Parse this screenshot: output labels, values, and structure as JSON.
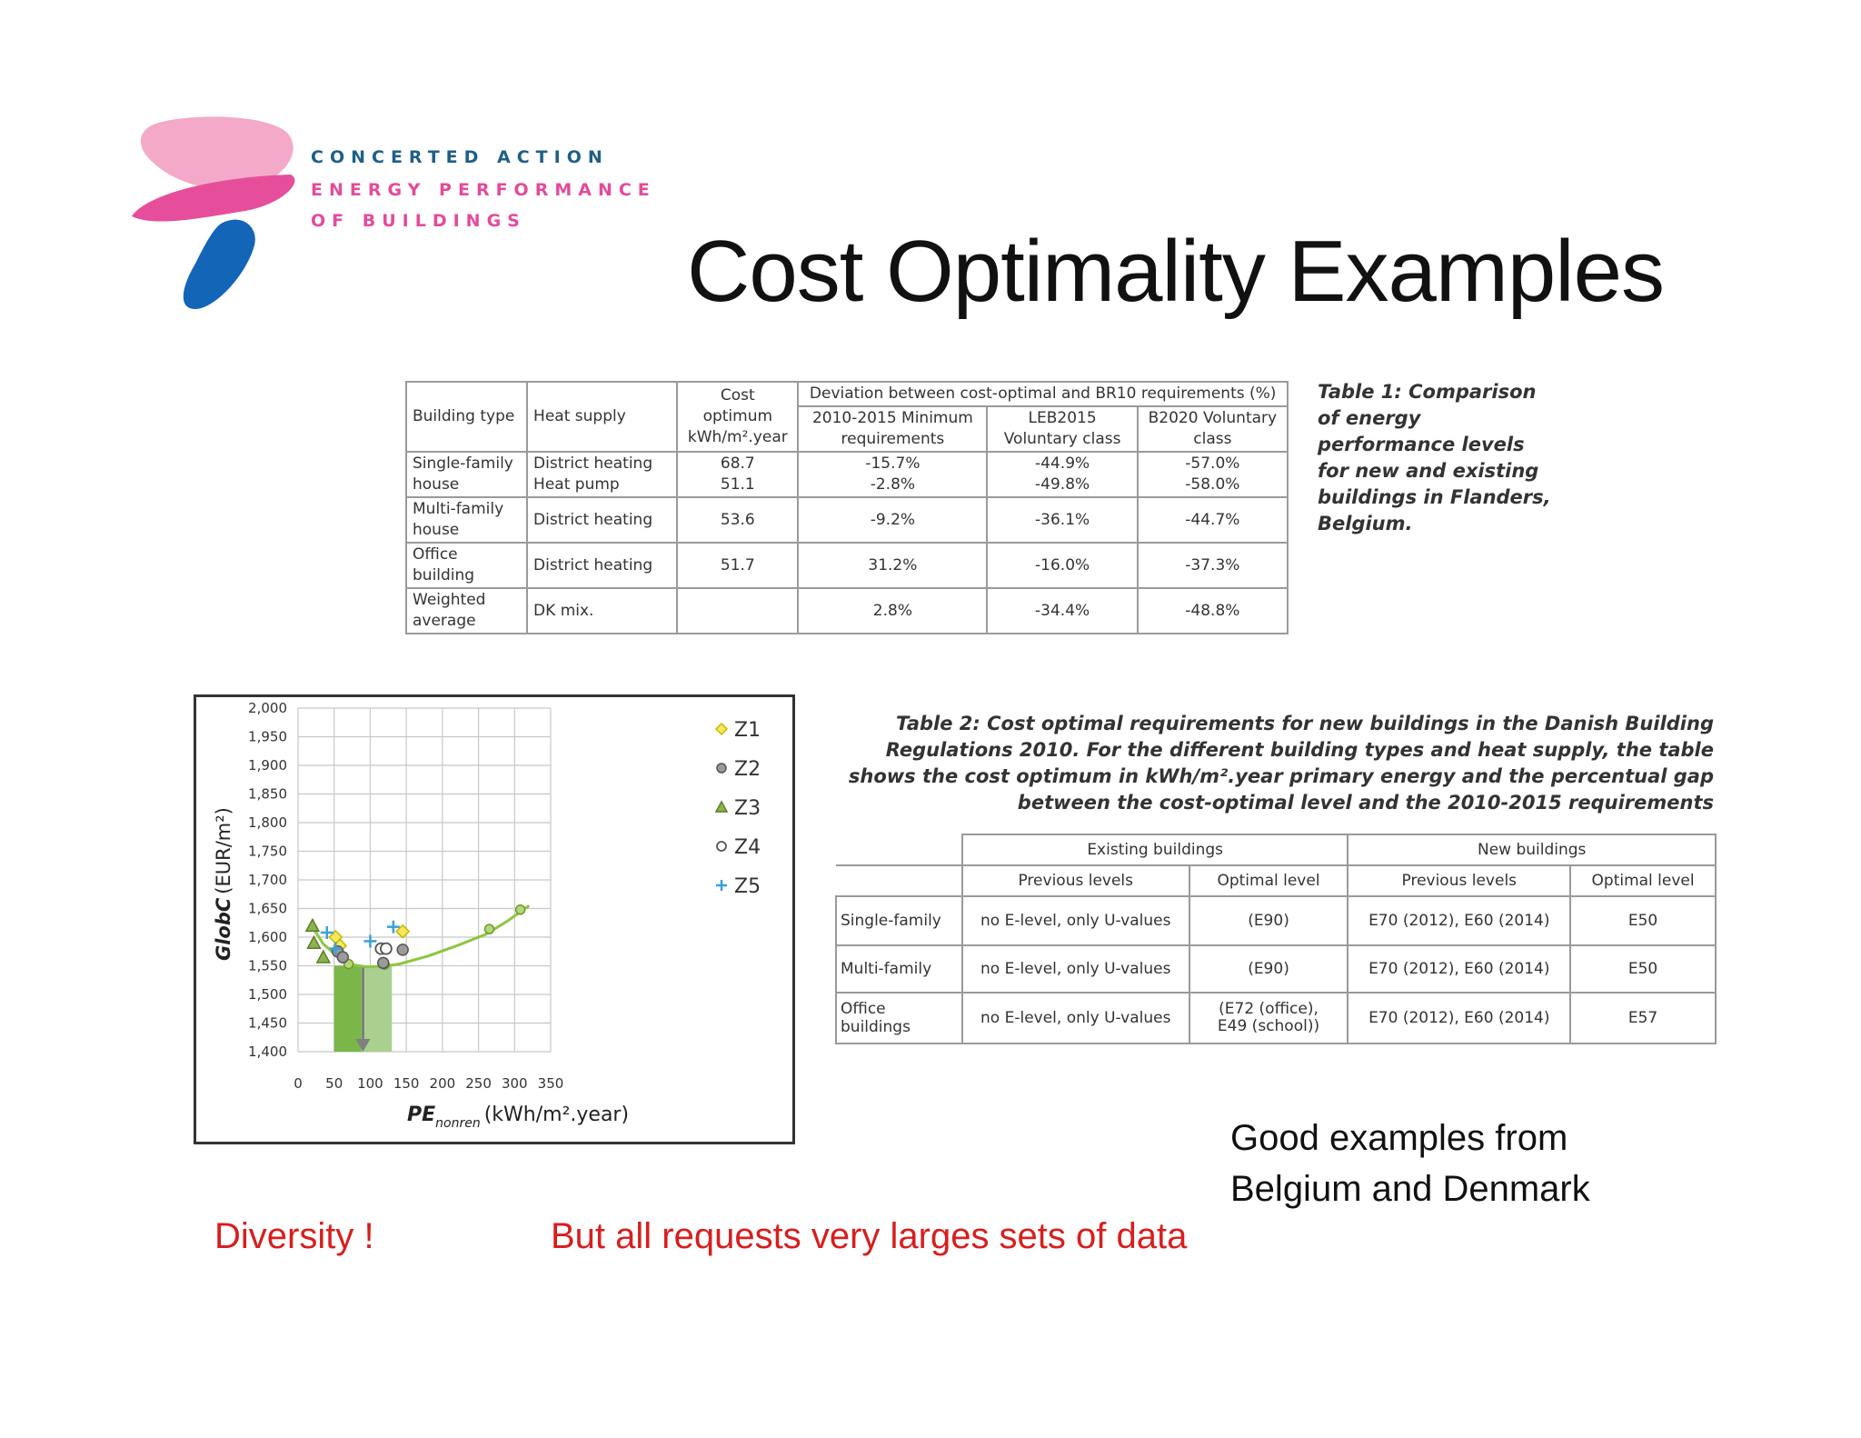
{
  "logo": {
    "line1": "CONCERTED ACTION",
    "line2": "ENERGY PERFORMANCE",
    "line3": "OF BUILDINGS",
    "colors": {
      "line1": "#1f5f86",
      "line2": "#e44b9a",
      "line3": "#e44b9a",
      "petal_light": "#f4a9c9",
      "petal_dark": "#e64e9b",
      "petal_blue": "#1265b7"
    }
  },
  "title": "Cost Optimality Examples",
  "table1": {
    "caption": "Table 1: Comparison of energy performance levels for new and existing buildings in Flanders, Belgium.",
    "header": {
      "building_type": "Building type",
      "heat_supply": "Heat supply",
      "cost_optimum": "Cost optimum kWh/m².year",
      "deviation": "Deviation between cost-optimal and BR10 requirements (%)",
      "col_2010": "2010-2015 Minimum requirements",
      "col_leb": "LEB2015 Voluntary class",
      "col_b2020": "B2020 Voluntary class"
    },
    "rows": [
      {
        "type": "Single-family house",
        "supply": "District heating\nHeat pump",
        "optimum": "68.7\n51.1",
        "d2010": "-15.7%\n-2.8%",
        "dleb": "-44.9%\n-49.8%",
        "db2020": "-57.0%\n-58.0%"
      },
      {
        "type": "Multi-family house",
        "supply": "District heating",
        "optimum": "53.6",
        "d2010": "-9.2%",
        "dleb": "-36.1%",
        "db2020": "-44.7%"
      },
      {
        "type": "Office building",
        "supply": "District heating",
        "optimum": "51.7",
        "d2010": "31.2%",
        "dleb": "-16.0%",
        "db2020": "-37.3%"
      },
      {
        "type": "Weighted average",
        "supply": "DK mix.",
        "optimum": "",
        "d2010": "2.8%",
        "dleb": "-34.4%",
        "db2020": "-48.8%"
      }
    ]
  },
  "table2": {
    "caption": "Table 2: Cost optimal requirements for new buildings in the Danish Building Regulations 2010. For the different building types and heat supply, the table shows the cost optimum in kWh/m².year primary energy and the percentual gap between the cost-optimal level and the 2010-2015 requirements",
    "group_existing": "Existing buildings",
    "group_new": "New buildings",
    "col_prev": "Previous levels",
    "col_opt": "Optimal level",
    "rows": [
      {
        "label": "Single-family",
        "ex_prev": "no E-level, only U-values",
        "ex_opt": "(E90)",
        "new_prev": "E70 (2012), E60 (2014)",
        "new_opt": "E50"
      },
      {
        "label": "Multi-family",
        "ex_prev": "no E-level, only U-values",
        "ex_opt": "(E90)",
        "new_prev": "E70 (2012), E60 (2014)",
        "new_opt": "E50"
      },
      {
        "label": "Office buildings",
        "ex_prev": "no E-level, only U-values",
        "ex_opt": "(E72 (office),\nE49 (school))",
        "new_prev": "E70 (2012), E60 (2014)",
        "new_opt": "E57"
      }
    ]
  },
  "chart_data": {
    "type": "scatter",
    "ylabel_main": "GlobC",
    "ylabel_unit": "(EUR/m²)",
    "xlabel_main": "PE",
    "xlabel_sub": "nonren",
    "xlabel_unit": "(kWh/m².year)",
    "xlim": [
      0,
      350
    ],
    "ylim": [
      1400,
      2000
    ],
    "x_ticks": [
      "0",
      "50",
      "100",
      "150",
      "200",
      "250",
      "300",
      "350"
    ],
    "y_ticks": [
      "1,400",
      "1,450",
      "1,500",
      "1,550",
      "1,600",
      "1,650",
      "1,700",
      "1,750",
      "1,800",
      "1,850",
      "1,900",
      "1,950",
      "2,000"
    ],
    "grid": true,
    "legend_position": "right",
    "series": [
      {
        "name": "Z1",
        "marker": "diamond",
        "color": "#c9b800",
        "points": [
          [
            52,
            1600
          ],
          [
            58,
            1585
          ],
          [
            145,
            1610
          ]
        ]
      },
      {
        "name": "Z2",
        "marker": "circle-filled",
        "color": "#7a7a7a",
        "points": [
          [
            55,
            1575
          ],
          [
            62,
            1565
          ],
          [
            118,
            1555
          ],
          [
            145,
            1578
          ]
        ]
      },
      {
        "name": "Z3",
        "marker": "triangle",
        "color": "#5a7d2b",
        "points": [
          [
            20,
            1620
          ],
          [
            22,
            1590
          ],
          [
            35,
            1565
          ]
        ]
      },
      {
        "name": "Z4",
        "marker": "circle-open",
        "color": "#555555",
        "points": [
          [
            115,
            1580
          ],
          [
            122,
            1580
          ]
        ]
      },
      {
        "name": "Z5",
        "marker": "cross",
        "color": "#3aa0d8",
        "points": [
          [
            40,
            1608
          ],
          [
            52,
            1580
          ],
          [
            100,
            1593
          ],
          [
            132,
            1618
          ]
        ]
      }
    ],
    "curve": {
      "color": "#8cc63f",
      "points": [
        [
          20,
          1618
        ],
        [
          35,
          1588
        ],
        [
          55,
          1566
        ],
        [
          75,
          1552
        ],
        [
          95,
          1548
        ],
        [
          115,
          1549
        ],
        [
          140,
          1553
        ],
        [
          180,
          1567
        ],
        [
          220,
          1585
        ],
        [
          260,
          1605
        ],
        [
          290,
          1628
        ],
        [
          320,
          1655
        ]
      ]
    },
    "curve_points": [
      [
        70,
        1553
      ],
      [
        120,
        1552
      ],
      [
        265,
        1614
      ],
      [
        308,
        1648
      ]
    ],
    "bars": [
      {
        "x_from": 50,
        "x_to": 88,
        "y_top": 1550,
        "color": "#7ab648"
      },
      {
        "x_from": 88,
        "x_to": 130,
        "y_top": 1550,
        "color": "#a9d08e"
      }
    ],
    "arrow": {
      "x": 90,
      "y_from": 1550,
      "y_to": 1400,
      "color": "#808080"
    }
  },
  "good_examples": "Good examples from\nBelgium and Denmark",
  "diversity": "Diversity !",
  "requests": "But all requests very larges sets of data"
}
